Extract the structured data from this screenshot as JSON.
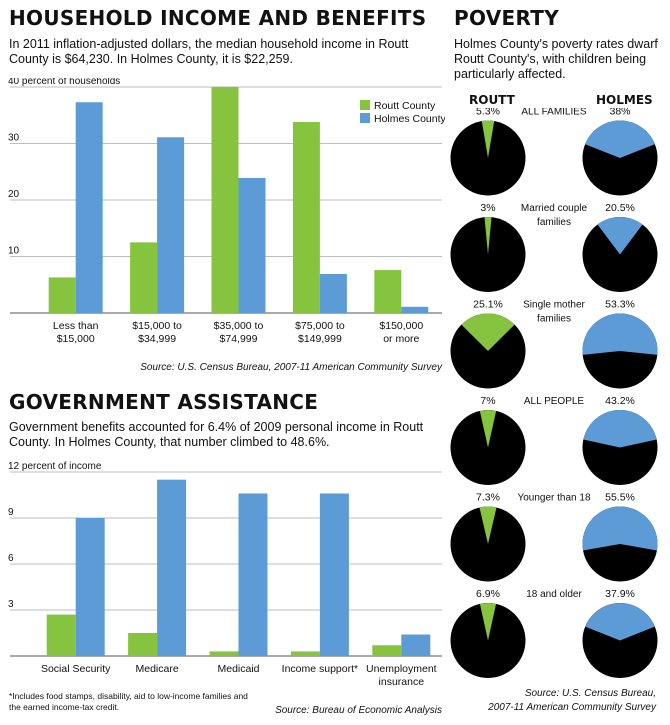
{
  "income": {
    "title": "HOUSEHOLD INCOME AND BENEFITS",
    "dek": "In 2011 inflation-adjusted dollars, the median household income in Routt County is $64,230. In Holmes County, it is $22,259.",
    "source": "Source: U.S. Census Bureau, 2007-11 American Community Survey"
  },
  "assistance": {
    "title": "GOVERNMENT ASSISTANCE",
    "dek": "Government benefits accounted for 6.4% of 2009 personal income in Routt County. In Holmes County, that number climbed to 48.6%.",
    "footnote": "*Includes food stamps, disability, aid to low-income families and the earned income-tax credit.",
    "source": "Source: Bureau of Economic Analysis"
  },
  "poverty": {
    "title": "POVERTY",
    "dek": "Holmes County's poverty rates dwarf Routt County's, with children being particularly affected.",
    "col_routt": "ROUTT",
    "col_holmes": "HOLMES",
    "source_line1": "Source: U.S. Census Bureau,",
    "source_line2": "2007-11 American Community Survey"
  },
  "colors": {
    "routt": "#86c440",
    "holmes": "#5c9bd5",
    "pie_base": "#000000",
    "grid": "#bdbdbd"
  },
  "chart_data": [
    {
      "type": "bar",
      "ylabel_tick": "40 percent of households",
      "ylim": [
        0,
        40
      ],
      "yticks": [
        0,
        10,
        20,
        30,
        40
      ],
      "ytick_labels": [
        "",
        "10",
        "20",
        "30",
        "40 percent of households"
      ],
      "categories": [
        [
          "Less than",
          "$15,000"
        ],
        [
          "$15,000 to",
          "$34,999"
        ],
        [
          "$35,000 to",
          "$74,999"
        ],
        [
          "$75,000 to",
          "$149,999"
        ],
        [
          "$150,000",
          "or more"
        ]
      ],
      "series": [
        {
          "name": "Routt County",
          "values": [
            6.3,
            12.5,
            40,
            33.8,
            7.6
          ]
        },
        {
          "name": "Holmes County",
          "values": [
            37.3,
            31.1,
            23.9,
            6.9,
            1.1
          ]
        }
      ],
      "legend": "top-right"
    },
    {
      "type": "bar",
      "ylim": [
        0,
        12
      ],
      "yticks": [
        0,
        3,
        6,
        9,
        12
      ],
      "ytick_labels": [
        "",
        "3",
        "6",
        "9",
        "12 percent of income"
      ],
      "categories": [
        [
          "Social Security"
        ],
        [
          "Medicare"
        ],
        [
          "Medicaid"
        ],
        [
          "Income support*"
        ],
        [
          "Unemployment",
          "insurance"
        ]
      ],
      "series": [
        {
          "name": "Routt County",
          "values": [
            2.7,
            1.5,
            0.3,
            0.3,
            0.7
          ]
        },
        {
          "name": "Holmes County",
          "values": [
            9,
            11.5,
            10.6,
            10.6,
            1.4
          ]
        }
      ]
    },
    {
      "type": "pie",
      "rows": [
        {
          "label": [
            "ALL FAMILIES"
          ],
          "routt": 5.3,
          "holmes": 38,
          "routt_label": "5.3%",
          "holmes_label": "38%"
        },
        {
          "label": [
            "Married couple",
            "families"
          ],
          "routt": 3,
          "holmes": 20.5,
          "routt_label": "3%",
          "holmes_label": "20.5%"
        },
        {
          "label": [
            "Single mother",
            "families"
          ],
          "routt": 25.1,
          "holmes": 53.3,
          "routt_label": "25.1%",
          "holmes_label": "53.3%"
        },
        {
          "label": [
            "ALL PEOPLE"
          ],
          "routt": 7,
          "holmes": 43.2,
          "routt_label": "7%",
          "holmes_label": "43.2%"
        },
        {
          "label": [
            "Younger than 18"
          ],
          "routt": 7.3,
          "holmes": 55.5,
          "routt_label": "7.3%",
          "holmes_label": "55.5%"
        },
        {
          "label": [
            "18 and older"
          ],
          "routt": 6.9,
          "holmes": 37.9,
          "routt_label": "6.9%",
          "holmes_label": "37.9%"
        }
      ]
    }
  ]
}
